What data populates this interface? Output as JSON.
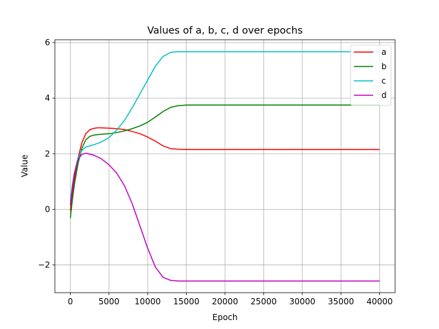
{
  "chart_data": {
    "type": "line",
    "title": "Values of a, b, c, d over epochs",
    "xlabel": "Epoch",
    "ylabel": "Value",
    "xlim": [
      -2000,
      42000
    ],
    "ylim": [
      -3,
      6.1
    ],
    "x_ticks": [
      0,
      5000,
      10000,
      15000,
      20000,
      25000,
      30000,
      35000,
      40000
    ],
    "y_ticks": [
      -2,
      0,
      2,
      4,
      6
    ],
    "x_tick_labels": [
      "0",
      "5000",
      "10000",
      "15000",
      "20000",
      "25000",
      "30000",
      "35000",
      "40000"
    ],
    "y_tick_labels": [
      "−2",
      "0",
      "2",
      "4",
      "6"
    ],
    "grid": true,
    "legend_position": "top-right",
    "series": [
      {
        "name": "a",
        "color": "#ff0000",
        "x": [
          0,
          250,
          500,
          1000,
          1500,
          2000,
          2500,
          3000,
          3500,
          4000,
          5000,
          6000,
          7000,
          8000,
          9000,
          10000,
          11000,
          12000,
          13000,
          14000,
          15000,
          20000,
          30000,
          40000
        ],
        "y": [
          -0.05,
          0.5,
          1.05,
          1.85,
          2.4,
          2.72,
          2.86,
          2.91,
          2.93,
          2.93,
          2.92,
          2.9,
          2.87,
          2.8,
          2.72,
          2.6,
          2.45,
          2.28,
          2.18,
          2.16,
          2.15,
          2.15,
          2.15,
          2.15
        ]
      },
      {
        "name": "b",
        "color": "#008000",
        "x": [
          0,
          250,
          500,
          1000,
          1500,
          2000,
          2500,
          3000,
          4000,
          5000,
          6000,
          7000,
          8000,
          9000,
          10000,
          11000,
          12000,
          13000,
          14000,
          15000,
          20000,
          30000,
          40000
        ],
        "y": [
          -0.32,
          0.3,
          0.85,
          1.65,
          2.2,
          2.5,
          2.62,
          2.67,
          2.7,
          2.72,
          2.76,
          2.82,
          2.9,
          3.0,
          3.13,
          3.32,
          3.52,
          3.67,
          3.73,
          3.75,
          3.75,
          3.75,
          3.75
        ]
      },
      {
        "name": "c",
        "color": "#00bfbf",
        "x": [
          0,
          250,
          500,
          1000,
          1500,
          2000,
          3000,
          4000,
          5000,
          6000,
          7000,
          8000,
          9000,
          10000,
          11000,
          12000,
          13000,
          14000,
          15000,
          20000,
          30000,
          40000
        ],
        "y": [
          0.3,
          0.85,
          1.3,
          1.85,
          2.12,
          2.24,
          2.32,
          2.42,
          2.58,
          2.85,
          3.2,
          3.65,
          4.15,
          4.65,
          5.15,
          5.5,
          5.65,
          5.67,
          5.67,
          5.67,
          5.67,
          5.67
        ]
      },
      {
        "name": "d",
        "color": "#bf00bf",
        "x": [
          0,
          250,
          500,
          1000,
          1500,
          2000,
          3000,
          4000,
          5000,
          6000,
          7000,
          8000,
          9000,
          10000,
          11000,
          12000,
          13000,
          14000,
          15000,
          20000,
          30000,
          40000
        ],
        "y": [
          0.15,
          0.75,
          1.25,
          1.8,
          1.98,
          2.02,
          1.95,
          1.82,
          1.6,
          1.3,
          0.85,
          0.2,
          -0.6,
          -1.4,
          -2.08,
          -2.45,
          -2.56,
          -2.58,
          -2.58,
          -2.58,
          -2.58,
          -2.58
        ]
      }
    ]
  }
}
